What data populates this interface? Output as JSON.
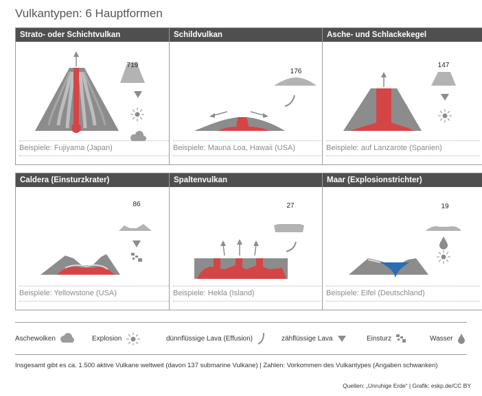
{
  "title": "Vulkantypen: 6 Hauptformen",
  "cards": [
    {
      "name": "Strato- oder Schichtvulkan",
      "count": "719",
      "example": "Beispiele: Fujiyama (Japan)"
    },
    {
      "name": "Schildvulkan",
      "count": "176",
      "example": "Beispiele: Mauna Loa, Hawaii (USA)"
    },
    {
      "name": "Asche- und Schlackekegel",
      "count": "147",
      "example": "Beispiele: auf Lanzarote (Spanien)"
    },
    {
      "name": "Caldera (Einsturzkrater)",
      "count": "86",
      "example": "Beispiele: Yellowstone (USA)"
    },
    {
      "name": "Spaltenvulkan",
      "count": "27",
      "example": "Beispiele: Hekla (Island)"
    },
    {
      "name": "Maar (Explosionstrichter)",
      "count": "19",
      "example": "Beispiele: Eifel (Deutschland)"
    }
  ],
  "legend": [
    {
      "label": "Aschewolken",
      "icon": "cloud-icon"
    },
    {
      "label": "Explosion",
      "icon": "explosion-icon"
    },
    {
      "label": "dünnflüssige Lava (Effusion)",
      "icon": "thin-lava-icon"
    },
    {
      "label": "zähflüssige Lava",
      "icon": "viscous-lava-icon"
    },
    {
      "label": "Einsturz",
      "icon": "collapse-icon"
    },
    {
      "label": "Wasser",
      "icon": "water-drop-icon"
    }
  ],
  "note": "Insgesamt gibt es ca. 1.500 aktive Vulkane weltweit (davon 137 submarine Vulkane)  |  Zahlen: Vorkommen des Vulkantypes (Angaben schwanken)",
  "source": "Quellen: „Unruhige Erde“ | Grafik: eskp.de/CC BY",
  "colors": {
    "rock": "#8c8c8c",
    "rock_light": "#b3b3b3",
    "lava": "#d64545",
    "water": "#2a6db5",
    "header": "#4f4f4f"
  }
}
